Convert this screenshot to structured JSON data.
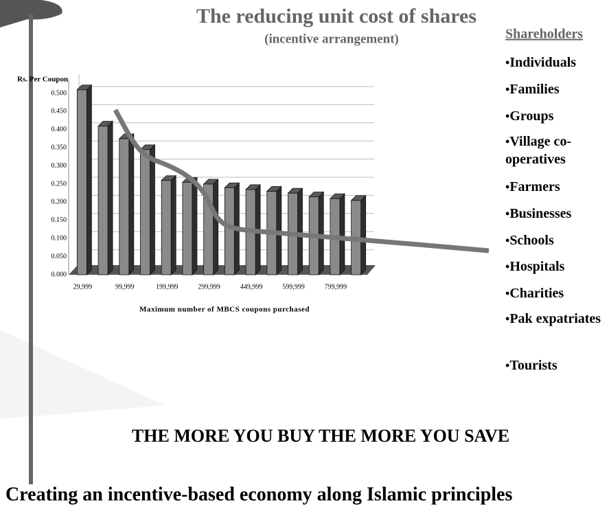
{
  "chart_data": {
    "type": "bar3d",
    "title": "The reducing unit cost of shares",
    "subtitle": "(incentive arrangement)",
    "y_label": "Rs. Per Coupon",
    "x_label": "Maximum number of MBCS coupons purchased",
    "categories": [
      "29,999",
      null,
      "99,999",
      null,
      "199,999",
      null,
      "299,999",
      null,
      "449,999",
      null,
      "599,999",
      null,
      "799,999",
      null
    ],
    "values": [
      0.51,
      0.41,
      0.375,
      0.345,
      0.26,
      0.255,
      0.25,
      0.24,
      0.235,
      0.23,
      0.225,
      0.215,
      0.21,
      0.205
    ],
    "ylim": [
      0,
      0.5
    ],
    "yticks": [
      {
        "value": 0,
        "label": "0.000"
      },
      {
        "value": 0.05,
        "label": "0.050"
      },
      {
        "value": 0.1,
        "label": "0.100"
      },
      {
        "value": 0.15,
        "label": "0.150"
      },
      {
        "value": 0.2,
        "label": "0.200"
      },
      {
        "value": 0.25,
        "label": "0.250"
      },
      {
        "value": 0.3,
        "label": "0.300"
      },
      {
        "value": 0.35,
        "label": "0.350"
      },
      {
        "value": 0.4,
        "label": "0.400"
      },
      {
        "value": 0.45,
        "label": "0.450"
      },
      {
        "value": 0.5,
        "label": "0.500"
      }
    ],
    "grid": true,
    "color": "#8a8a8a"
  },
  "shareholders": {
    "heading": "Shareholders",
    "items": [
      "Individuals",
      "Families",
      "Groups",
      "Village co-operatives",
      "Farmers",
      "Businesses",
      "Schools",
      "Hospitals",
      "Charities",
      "Pak expatriates",
      "Tourists"
    ]
  },
  "slogan": "THE MORE YOU BUY THE MORE YOU SAVE",
  "footer": "Creating an incentive-based economy along Islamic principles"
}
